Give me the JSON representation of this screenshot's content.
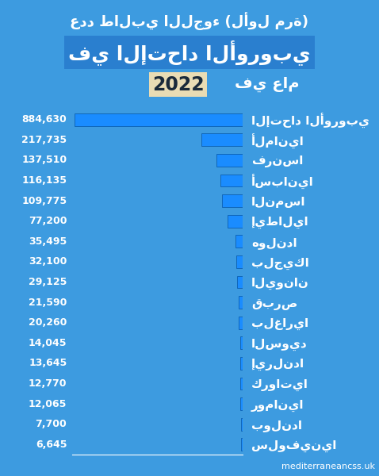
{
  "chart_data": {
    "type": "bar",
    "title": "عدد طالبي اللجوء (لأول مرة)",
    "subtitle": "في الإتحاد الأوروبي",
    "year_label": "في عام",
    "year": "2022",
    "source": "mediterraneancss.uk",
    "orientation": "horizontal",
    "categories": [
      "الإتحاد الأوروبي",
      "ألمانيا",
      "فرنسا",
      "أسبانيا",
      "النمسا",
      "إيطاليا",
      "هولندا",
      "بلجيكا",
      "اليونان",
      "قبرص",
      "بلغاريا",
      "السويد",
      "إيرلندا",
      "كرواتيا",
      "رومانيا",
      "بولندا",
      "سلوفينيا"
    ],
    "values": [
      884630,
      217735,
      137510,
      116135,
      109775,
      77200,
      35495,
      32100,
      29125,
      21590,
      20260,
      14045,
      13645,
      12770,
      12065,
      7700,
      6645
    ],
    "value_labels": [
      "884,630",
      "217,735",
      "137,510",
      "116,135",
      "109,775",
      "77,200",
      "35,495",
      "32,100",
      "29,125",
      "21,590",
      "20,260",
      "14,045",
      "13,645",
      "12,770",
      "12,065",
      "7,700",
      "6,645"
    ],
    "color": "#1a8cff",
    "xlim": [
      0,
      900000
    ],
    "data_labels": true,
    "tick_labels": "y",
    "grid": false
  }
}
